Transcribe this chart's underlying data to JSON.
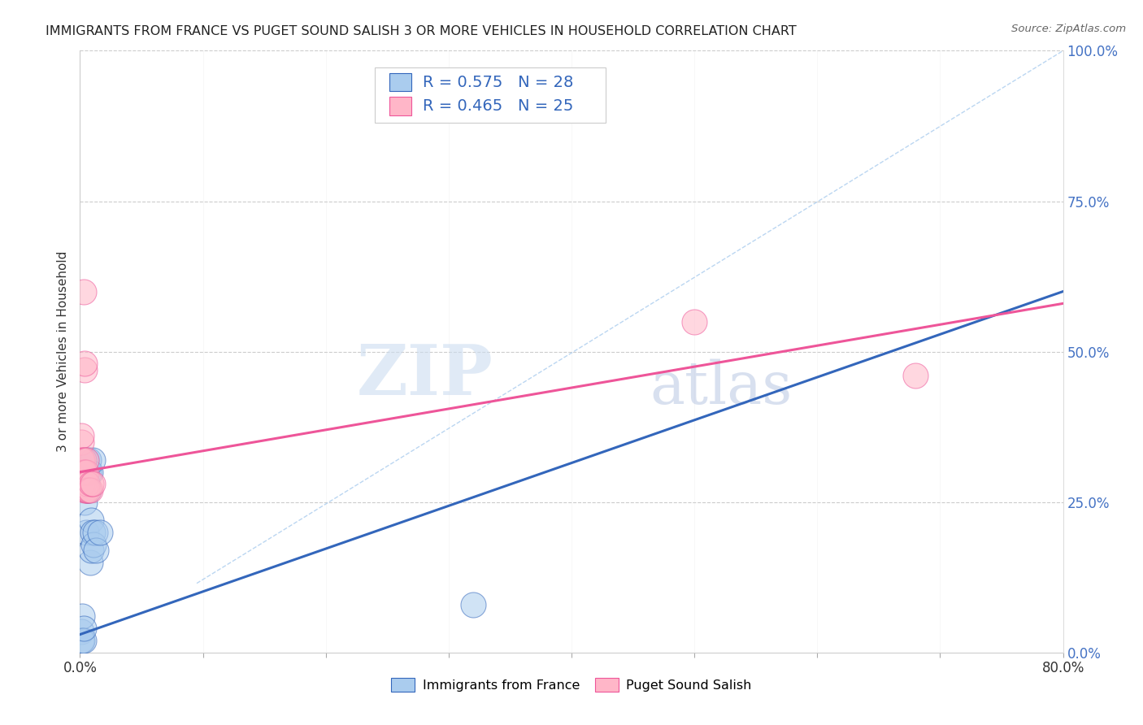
{
  "title": "IMMIGRANTS FROM FRANCE VS PUGET SOUND SALISH 3 OR MORE VEHICLES IN HOUSEHOLD CORRELATION CHART",
  "source": "Source: ZipAtlas.com",
  "ylabel": "3 or more Vehicles in Household",
  "xlim": [
    0.0,
    0.8
  ],
  "ylim": [
    0.0,
    1.0
  ],
  "blue_R": 0.575,
  "blue_N": 28,
  "pink_R": 0.465,
  "pink_N": 25,
  "legend_label_blue": "Immigrants from France",
  "legend_label_pink": "Puget Sound Salish",
  "blue_color": "#aaccee",
  "pink_color": "#ffb6c8",
  "blue_line_color": "#3366bb",
  "pink_line_color": "#ee5599",
  "diag_line_color": "#aaccee",
  "watermark_zip": "ZIP",
  "watermark_atlas": "atlas",
  "blue_points": [
    [
      0.001,
      0.035
    ],
    [
      0.001,
      0.02
    ],
    [
      0.002,
      0.06
    ],
    [
      0.002,
      0.02
    ],
    [
      0.003,
      0.02
    ],
    [
      0.003,
      0.04
    ],
    [
      0.004,
      0.25
    ],
    [
      0.004,
      0.32
    ],
    [
      0.005,
      0.3
    ],
    [
      0.005,
      0.32
    ],
    [
      0.005,
      0.2
    ],
    [
      0.006,
      0.27
    ],
    [
      0.006,
      0.28
    ],
    [
      0.006,
      0.3
    ],
    [
      0.007,
      0.27
    ],
    [
      0.007,
      0.3
    ],
    [
      0.007,
      0.32
    ],
    [
      0.008,
      0.3
    ],
    [
      0.008,
      0.15
    ],
    [
      0.009,
      0.17
    ],
    [
      0.009,
      0.22
    ],
    [
      0.01,
      0.2
    ],
    [
      0.01,
      0.32
    ],
    [
      0.011,
      0.18
    ],
    [
      0.012,
      0.2
    ],
    [
      0.013,
      0.17
    ],
    [
      0.016,
      0.2
    ],
    [
      0.32,
      0.08
    ]
  ],
  "pink_points": [
    [
      0.001,
      0.32
    ],
    [
      0.001,
      0.35
    ],
    [
      0.001,
      0.36
    ],
    [
      0.002,
      0.28
    ],
    [
      0.002,
      0.3
    ],
    [
      0.002,
      0.32
    ],
    [
      0.003,
      0.28
    ],
    [
      0.003,
      0.3
    ],
    [
      0.003,
      0.32
    ],
    [
      0.003,
      0.6
    ],
    [
      0.004,
      0.27
    ],
    [
      0.004,
      0.3
    ],
    [
      0.004,
      0.47
    ],
    [
      0.004,
      0.48
    ],
    [
      0.005,
      0.27
    ],
    [
      0.005,
      0.3
    ],
    [
      0.005,
      0.32
    ],
    [
      0.006,
      0.27
    ],
    [
      0.006,
      0.28
    ],
    [
      0.007,
      0.27
    ],
    [
      0.008,
      0.27
    ],
    [
      0.009,
      0.28
    ],
    [
      0.01,
      0.28
    ],
    [
      0.5,
      0.55
    ],
    [
      0.68,
      0.46
    ]
  ],
  "blue_scatter_size": 500,
  "pink_scatter_size": 500,
  "blue_line_x": [
    0.0,
    0.8
  ],
  "blue_line_y": [
    0.03,
    0.6
  ],
  "pink_line_x": [
    0.0,
    0.8
  ],
  "pink_line_y": [
    0.3,
    0.58
  ],
  "diag_line_x": [
    0.095,
    0.8
  ],
  "diag_line_y": [
    0.115,
    1.0
  ]
}
